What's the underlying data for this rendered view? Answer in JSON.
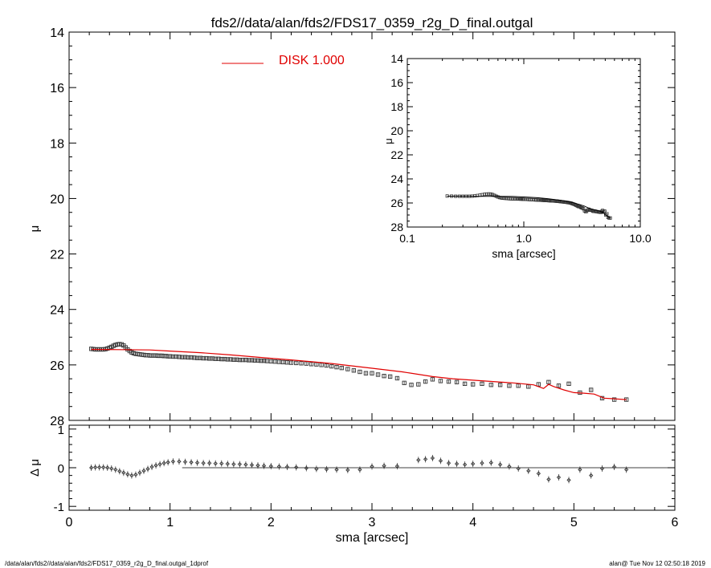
{
  "title": "fds2//data/alan/fds2/FDS17_0359_r2g_D_final.outgal",
  "legend": {
    "label": "DISK  1.000",
    "color": "#e00000"
  },
  "footer": {
    "left": "/data/alan/fds2//data/alan/fds2/FDS17_0359_r2g_D_final.outgal_1dprof",
    "right": "alan@  Tue Nov 12 02:50:18 2019"
  },
  "chart_data": [
    {
      "id": "main",
      "type": "scatter",
      "xlabel": "",
      "ylabel": "μ",
      "xlim": [
        0,
        6
      ],
      "ylim": [
        28,
        14
      ],
      "y_inverted": true,
      "yticks": [
        14,
        16,
        18,
        20,
        22,
        24,
        26,
        28
      ],
      "series": [
        {
          "name": "",
          "kind": "data-points",
          "marker": "open-square",
          "x": [
            0.22,
            0.24,
            0.26,
            0.28,
            0.3,
            0.32,
            0.34,
            0.36,
            0.38,
            0.4,
            0.42,
            0.44,
            0.46,
            0.48,
            0.5,
            0.52,
            0.54,
            0.56,
            0.58,
            0.6,
            0.62,
            0.64,
            0.66,
            0.68,
            0.7,
            0.72,
            0.74,
            0.76,
            0.78,
            0.8,
            0.82,
            0.84,
            0.86,
            0.88,
            0.9,
            0.92,
            0.94,
            0.96,
            0.98,
            1.0,
            1.03,
            1.06,
            1.09,
            1.12,
            1.15,
            1.18,
            1.21,
            1.24,
            1.27,
            1.3,
            1.33,
            1.36,
            1.39,
            1.42,
            1.45,
            1.48,
            1.51,
            1.54,
            1.57,
            1.6,
            1.63,
            1.66,
            1.69,
            1.72,
            1.75,
            1.78,
            1.81,
            1.84,
            1.87,
            1.9,
            1.93,
            1.96,
            2.0,
            2.04,
            2.08,
            2.12,
            2.16,
            2.2,
            2.25,
            2.3,
            2.35,
            2.4,
            2.45,
            2.5,
            2.55,
            2.6,
            2.65,
            2.7,
            2.76,
            2.82,
            2.88,
            2.94,
            3.0,
            3.06,
            3.12,
            3.18,
            3.25,
            3.32,
            3.39,
            3.46,
            3.53,
            3.6,
            3.68,
            3.76,
            3.84,
            3.92,
            4.0,
            4.09,
            4.18,
            4.27,
            4.36,
            4.45,
            4.55,
            4.65,
            4.75,
            4.85,
            4.95,
            5.06,
            5.17,
            5.28,
            5.4,
            5.52
          ],
          "y": [
            25.42,
            25.43,
            25.44,
            25.44,
            25.44,
            25.44,
            25.44,
            25.43,
            25.41,
            25.38,
            25.35,
            25.31,
            25.28,
            25.26,
            25.25,
            25.26,
            25.3,
            25.37,
            25.44,
            25.5,
            25.55,
            25.58,
            25.6,
            25.61,
            25.62,
            25.63,
            25.64,
            25.65,
            25.65,
            25.66,
            25.66,
            25.66,
            25.66,
            25.67,
            25.67,
            25.67,
            25.68,
            25.68,
            25.69,
            25.69,
            25.7,
            25.7,
            25.71,
            25.72,
            25.72,
            25.73,
            25.73,
            25.74,
            25.75,
            25.75,
            25.76,
            25.76,
            25.77,
            25.77,
            25.78,
            25.78,
            25.79,
            25.79,
            25.8,
            25.8,
            25.81,
            25.81,
            25.82,
            25.82,
            25.82,
            25.83,
            25.83,
            25.84,
            25.84,
            25.85,
            25.85,
            25.86,
            25.87,
            25.88,
            25.89,
            25.9,
            25.91,
            25.92,
            25.93,
            25.94,
            25.95,
            25.97,
            25.98,
            26.0,
            26.02,
            26.05,
            26.08,
            26.11,
            26.15,
            26.2,
            26.25,
            26.3,
            26.3,
            26.35,
            26.4,
            26.42,
            26.48,
            26.65,
            26.72,
            26.7,
            26.6,
            26.52,
            26.58,
            26.6,
            26.62,
            26.68,
            26.7,
            26.68,
            26.72,
            26.72,
            26.75,
            26.75,
            26.78,
            26.7,
            26.62,
            26.75,
            26.68,
            27.0,
            26.9,
            27.2,
            27.25,
            27.25
          ],
          "yerr": 0.05
        },
        {
          "name": "DISK  1.000",
          "kind": "model-line",
          "color": "#e00000",
          "x": [
            0.22,
            0.5,
            0.8,
            1.0,
            1.3,
            1.6,
            2.0,
            2.2,
            2.6,
            3.0,
            3.3,
            3.6,
            3.8,
            4.0,
            4.2,
            4.4,
            4.6,
            4.7,
            4.75,
            4.8,
            4.9,
            5.0,
            5.1,
            5.2,
            5.3,
            5.52
          ],
          "y": [
            25.44,
            25.45,
            25.46,
            25.5,
            25.56,
            25.64,
            25.76,
            25.82,
            25.95,
            26.12,
            26.25,
            26.42,
            26.5,
            26.55,
            26.6,
            26.65,
            26.72,
            26.85,
            26.7,
            26.78,
            26.9,
            27.0,
            27.02,
            27.05,
            27.2,
            27.25
          ]
        }
      ]
    },
    {
      "id": "residual",
      "type": "scatter",
      "xlabel": "sma [arcsec]",
      "ylabel": "Δ μ",
      "xlim": [
        0,
        6
      ],
      "ylim": [
        -1.1,
        1.1
      ],
      "yticks": [
        -1,
        0,
        1
      ],
      "xticks": [
        0,
        1,
        2,
        3,
        4,
        5,
        6
      ],
      "zero_line_from_x": 1.12,
      "series": [
        {
          "name": "",
          "kind": "residual-points",
          "marker": "diamond-with-errorbar",
          "x": [
            0.22,
            0.26,
            0.3,
            0.34,
            0.38,
            0.42,
            0.46,
            0.5,
            0.54,
            0.58,
            0.62,
            0.66,
            0.7,
            0.74,
            0.78,
            0.82,
            0.86,
            0.9,
            0.94,
            0.98,
            1.03,
            1.09,
            1.15,
            1.21,
            1.27,
            1.33,
            1.39,
            1.45,
            1.51,
            1.57,
            1.63,
            1.69,
            1.75,
            1.81,
            1.87,
            1.93,
            2.0,
            2.08,
            2.16,
            2.25,
            2.35,
            2.45,
            2.55,
            2.65,
            2.76,
            2.88,
            3.0,
            3.12,
            3.25,
            3.46,
            3.53,
            3.6,
            3.68,
            3.76,
            3.84,
            3.92,
            4.0,
            4.09,
            4.18,
            4.27,
            4.36,
            4.45,
            4.55,
            4.65,
            4.75,
            4.85,
            4.95,
            5.06,
            5.17,
            5.28,
            5.4,
            5.52
          ],
          "y": [
            0.0,
            0.01,
            0.01,
            0.01,
            0.0,
            -0.02,
            -0.05,
            -0.09,
            -0.13,
            -0.17,
            -0.2,
            -0.18,
            -0.13,
            -0.08,
            -0.03,
            0.02,
            0.06,
            0.09,
            0.12,
            0.14,
            0.16,
            0.16,
            0.15,
            0.14,
            0.13,
            0.12,
            0.12,
            0.11,
            0.11,
            0.1,
            0.09,
            0.09,
            0.08,
            0.07,
            0.06,
            0.05,
            0.04,
            0.03,
            0.02,
            0.01,
            -0.01,
            -0.03,
            -0.04,
            -0.05,
            -0.06,
            -0.05,
            0.03,
            0.05,
            0.04,
            0.2,
            0.22,
            0.25,
            0.18,
            0.12,
            0.1,
            0.08,
            0.1,
            0.12,
            0.13,
            0.08,
            0.03,
            -0.02,
            -0.08,
            -0.15,
            -0.3,
            -0.25,
            -0.32,
            -0.05,
            -0.2,
            -0.02,
            0.02,
            -0.05
          ]
        }
      ]
    },
    {
      "id": "inset",
      "type": "scatter",
      "xlabel": "sma [arcsec]",
      "ylabel": "μ",
      "xscale": "log",
      "xlim": [
        0.1,
        10.0
      ],
      "xtick_labels": [
        "0.1",
        "1.0",
        "10.0"
      ],
      "ylim": [
        28,
        14
      ],
      "y_inverted": true,
      "yticks": [
        14,
        16,
        18,
        20,
        22,
        24,
        26,
        28
      ],
      "note": "log-x view of the same profile as the main panel"
    }
  ]
}
